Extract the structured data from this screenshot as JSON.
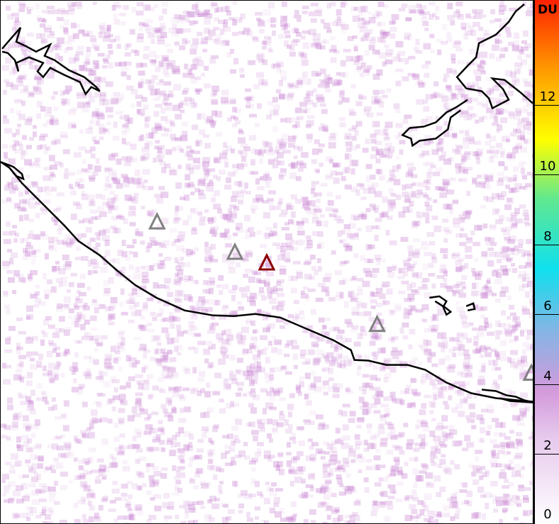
{
  "map": {
    "volcanoes": [
      {
        "status": "inactive",
        "color": "#808080"
      },
      {
        "status": "inactive",
        "color": "#808080"
      },
      {
        "status": "active",
        "color": "#8b0000"
      },
      {
        "status": "inactive",
        "color": "#808080"
      },
      {
        "status": "inactive",
        "color": "#808080"
      }
    ]
  },
  "colorbar": {
    "unit": "DU",
    "min": 0,
    "max": 15,
    "ticks": [
      "0",
      "2",
      "4",
      "6",
      "8",
      "10",
      "12"
    ],
    "colors": [
      "#ffffff",
      "#e6c8ec",
      "#d49adc",
      "#86b4e4",
      "#10e0ee",
      "#60e890",
      "#ffff00",
      "#ff9a00",
      "#ff2000"
    ]
  }
}
